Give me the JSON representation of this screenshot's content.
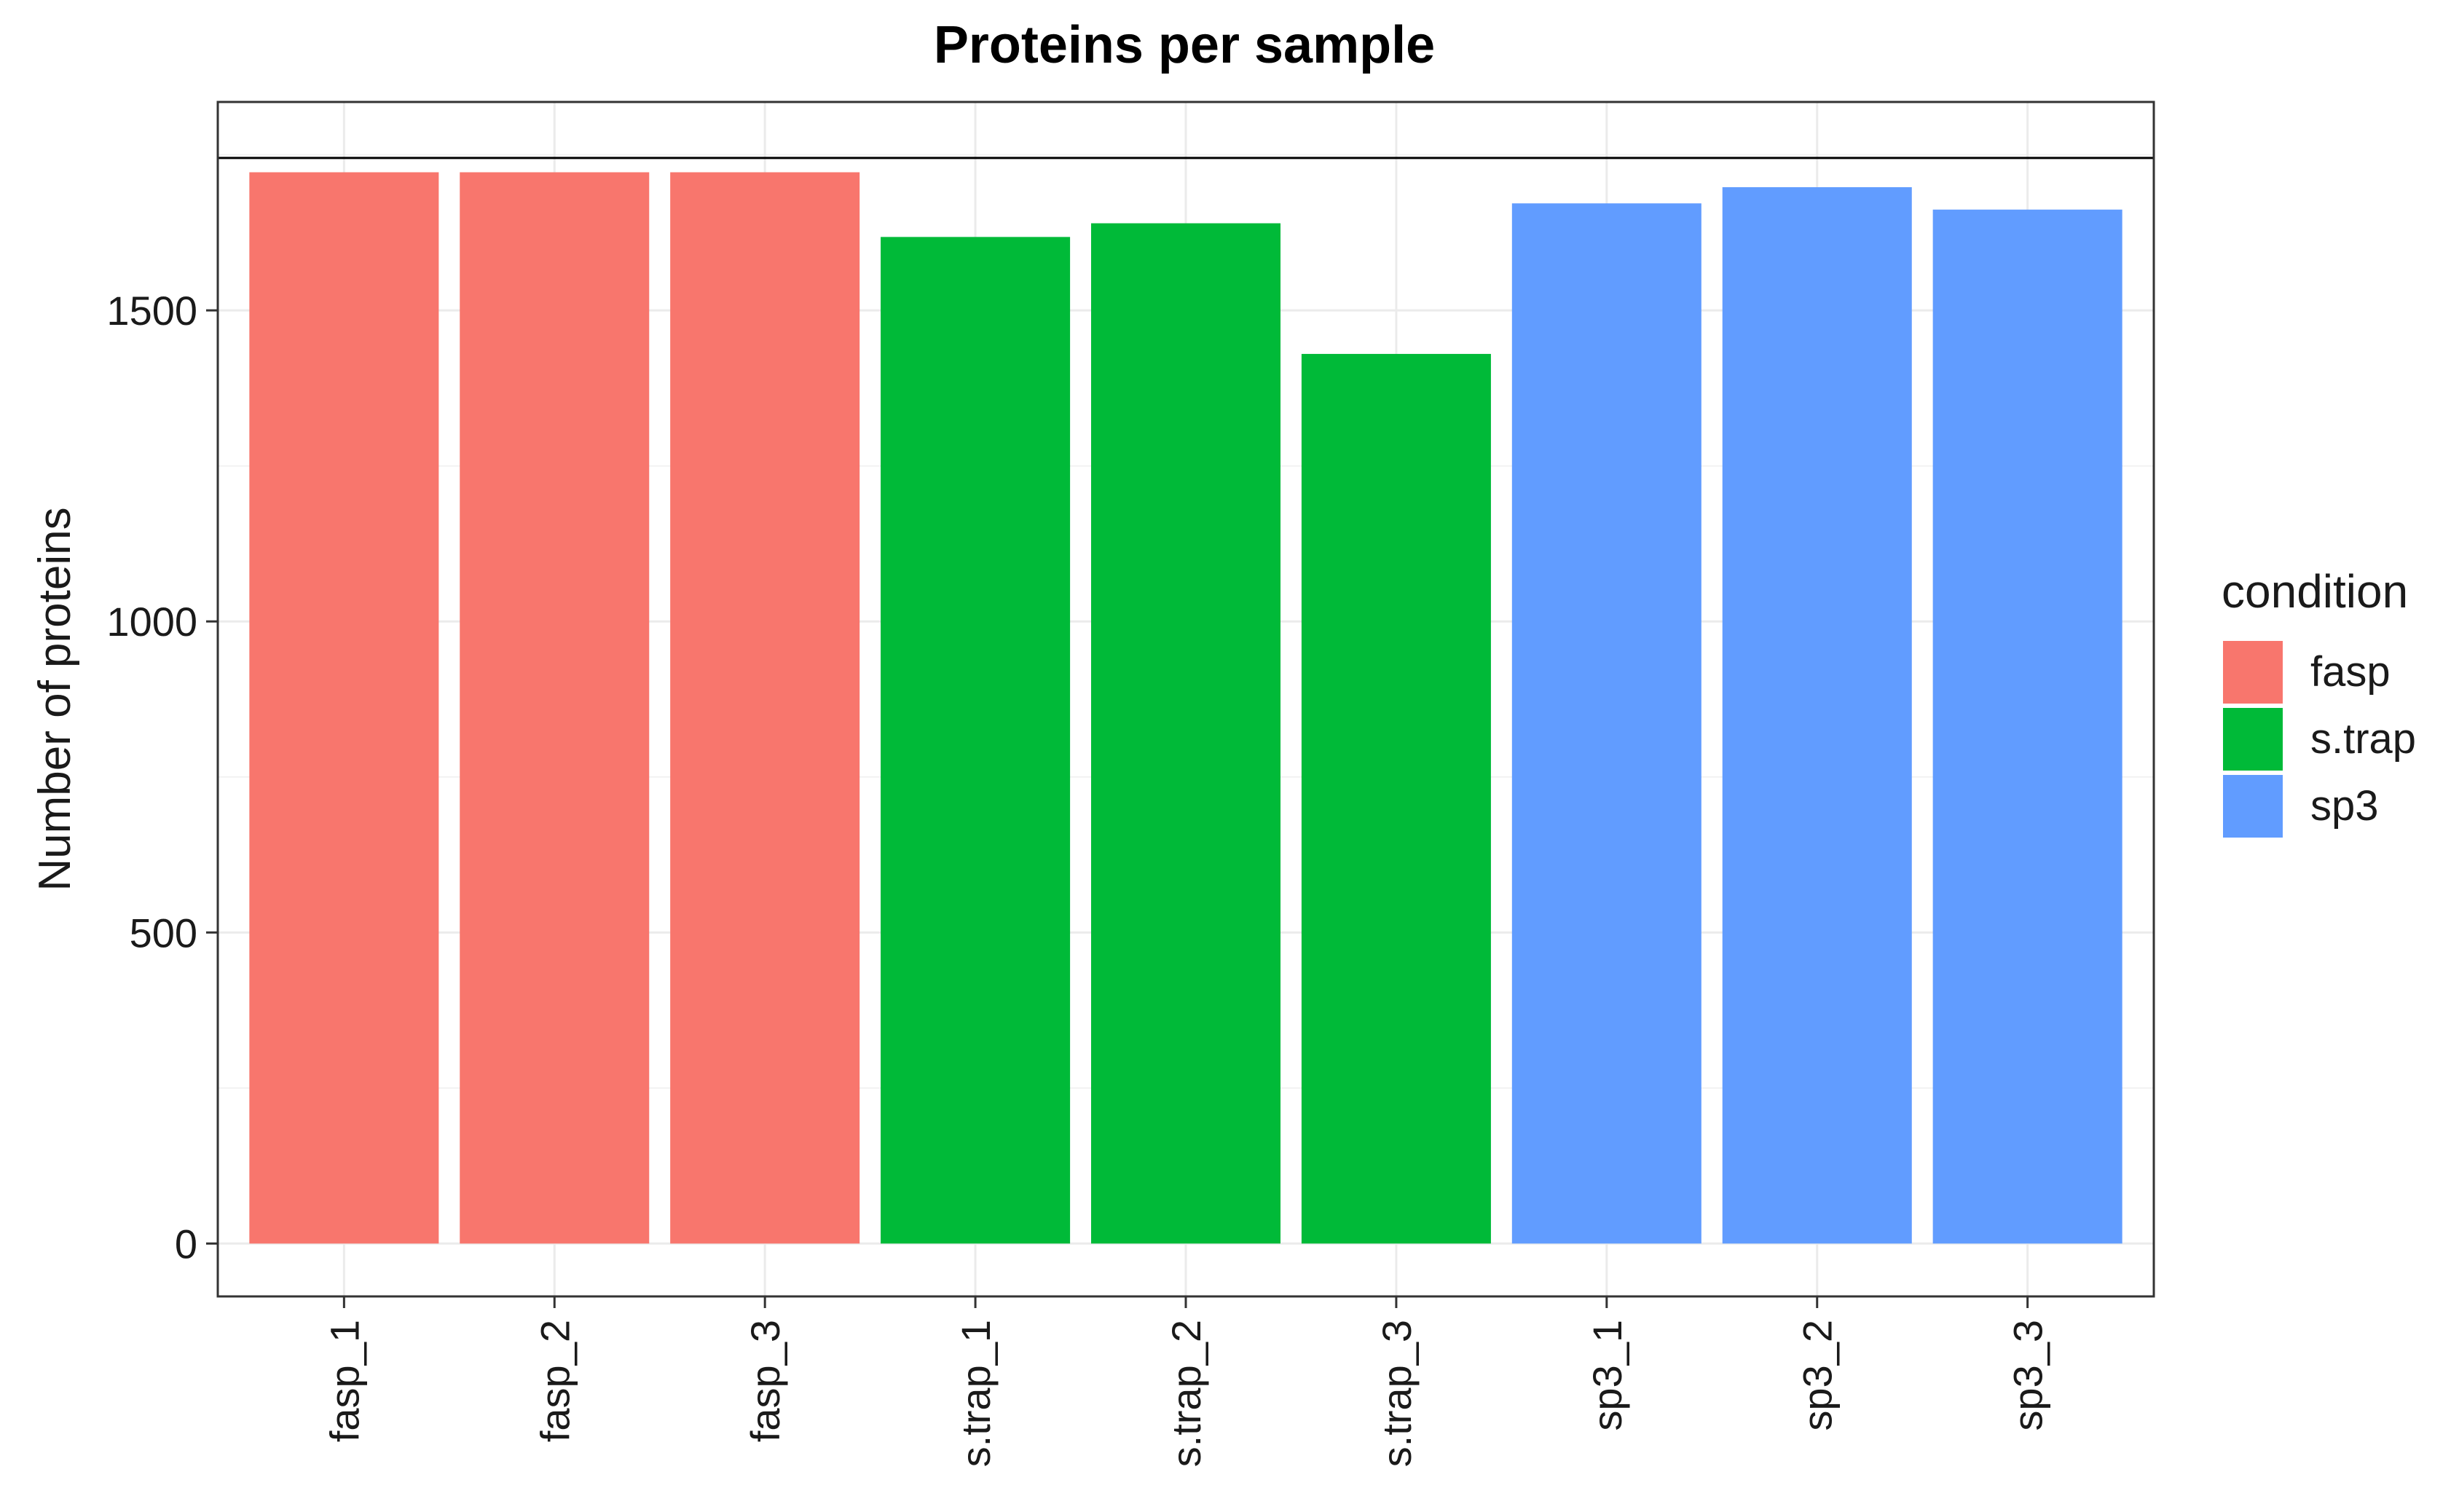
{
  "chart_data": {
    "type": "bar",
    "title": "Proteins per sample",
    "xlabel": "",
    "ylabel": "Number of proteins",
    "categories": [
      "fasp_1",
      "fasp_2",
      "fasp_3",
      "s.trap_1",
      "s.trap_2",
      "s.trap_3",
      "sp3_1",
      "sp3_2",
      "sp3_3"
    ],
    "values": [
      1722,
      1722,
      1722,
      1618,
      1640,
      1430,
      1672,
      1698,
      1662
    ],
    "groups": [
      "fasp",
      "fasp",
      "fasp",
      "s.trap",
      "s.trap",
      "s.trap",
      "sp3",
      "sp3",
      "sp3"
    ],
    "reference_line": 1745,
    "ylim": [
      -85,
      1835
    ],
    "yticks": [
      0,
      500,
      1000,
      1500
    ],
    "ytick_labels": [
      "0",
      "500",
      "1000",
      "1500"
    ],
    "grid": true,
    "legend": {
      "title": "condition",
      "position": "right",
      "entries": [
        {
          "label": "fasp",
          "color": "#F8766D"
        },
        {
          "label": "s.trap",
          "color": "#00BA38"
        },
        {
          "label": "sp3",
          "color": "#619CFF"
        }
      ]
    }
  }
}
